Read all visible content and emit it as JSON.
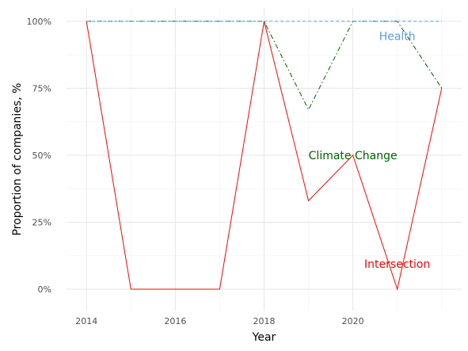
{
  "chart_data": {
    "type": "line",
    "xlabel": "Year",
    "ylabel": "Proportion of companies, %",
    "x": [
      2014,
      2015,
      2016,
      2017,
      2018,
      2019,
      2020,
      2021,
      2022
    ],
    "xlim": [
      2013.55,
      2022.45
    ],
    "ylim": [
      -0.08,
      1.05
    ],
    "x_ticks": [
      2014,
      2016,
      2018,
      2020
    ],
    "y_ticks": [
      0,
      0.25,
      0.5,
      0.75,
      1.0
    ],
    "y_tick_labels": [
      "0%",
      "25%",
      "50%",
      "75%",
      "100%"
    ],
    "grid": true,
    "legend": "none (direct labels)",
    "series": [
      {
        "name": "Health",
        "color": "#5b9bea",
        "dash": "dashed",
        "values": [
          1,
          1,
          1,
          1,
          1,
          1,
          1,
          1,
          1
        ],
        "label_at": [
          2021.0,
          0.945
        ]
      },
      {
        "name": "Climate Change",
        "color": "#006400",
        "dash": "dashdot",
        "values": [
          1,
          1,
          1,
          1,
          1,
          0.67,
          1,
          1,
          0.75
        ],
        "label_at": [
          2020.0,
          0.5
        ]
      },
      {
        "name": "Intersection",
        "color": "#ff0000",
        "dash": "solid",
        "values": [
          1,
          0,
          0,
          0,
          1,
          0.33,
          0.5,
          0,
          0.75
        ],
        "label_at": [
          2021.0,
          0.095
        ]
      }
    ]
  }
}
